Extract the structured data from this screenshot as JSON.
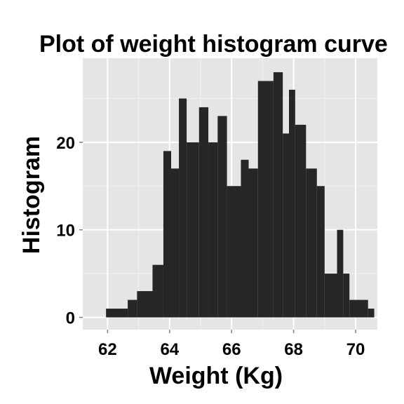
{
  "chart_data": {
    "type": "histogram",
    "title": "Plot of weight histogram curve",
    "xlabel": "Weight (Kg)",
    "ylabel": "Histogram",
    "xlim": [
      61.2,
      70.7
    ],
    "ylim": [
      -1.4,
      29.6
    ],
    "x_ticks": [
      62,
      64,
      66,
      68,
      70
    ],
    "x_tick_labels": [
      "62",
      "64",
      "66",
      "68",
      "70"
    ],
    "y_ticks": [
      0,
      10,
      20
    ],
    "y_tick_labels": [
      "0",
      "10",
      "20"
    ],
    "x_minor_gridlines": [
      63,
      65,
      67,
      69
    ],
    "y_minor_gridlines": [
      5,
      15,
      25
    ],
    "grid": true,
    "bins": [
      {
        "x0": 61.95,
        "x1": 62.65,
        "count": 1
      },
      {
        "x0": 62.65,
        "x1": 62.95,
        "count": 2
      },
      {
        "x0": 62.95,
        "x1": 63.45,
        "count": 3
      },
      {
        "x0": 63.45,
        "x1": 63.8,
        "count": 6
      },
      {
        "x0": 63.8,
        "x1": 64.05,
        "count": 19
      },
      {
        "x0": 64.05,
        "x1": 64.3,
        "count": 17
      },
      {
        "x0": 64.3,
        "x1": 64.55,
        "count": 25
      },
      {
        "x0": 64.55,
        "x1": 64.95,
        "count": 20
      },
      {
        "x0": 64.95,
        "x1": 65.25,
        "count": 24
      },
      {
        "x0": 65.25,
        "x1": 65.55,
        "count": 20
      },
      {
        "x0": 65.55,
        "x1": 65.85,
        "count": 23
      },
      {
        "x0": 65.85,
        "x1": 66.3,
        "count": 15
      },
      {
        "x0": 66.3,
        "x1": 66.55,
        "count": 18
      },
      {
        "x0": 66.55,
        "x1": 66.85,
        "count": 17
      },
      {
        "x0": 66.85,
        "x1": 67.35,
        "count": 27
      },
      {
        "x0": 67.35,
        "x1": 67.65,
        "count": 28
      },
      {
        "x0": 67.65,
        "x1": 67.85,
        "count": 21
      },
      {
        "x0": 67.85,
        "x1": 68.05,
        "count": 26
      },
      {
        "x0": 68.05,
        "x1": 68.4,
        "count": 22
      },
      {
        "x0": 68.4,
        "x1": 68.75,
        "count": 17
      },
      {
        "x0": 68.75,
        "x1": 69.0,
        "count": 15
      },
      {
        "x0": 69.0,
        "x1": 69.4,
        "count": 5
      },
      {
        "x0": 69.4,
        "x1": 69.6,
        "count": 10
      },
      {
        "x0": 69.6,
        "x1": 69.8,
        "count": 5
      },
      {
        "x0": 69.8,
        "x1": 70.4,
        "count": 2
      },
      {
        "x0": 70.4,
        "x1": 70.6,
        "count": 1
      }
    ],
    "colors": {
      "panel_background": "#e5e5e5",
      "grid_major": "#ffffff",
      "grid_minor": "#f2f2f2",
      "bar_fill": "#262626",
      "tick_mark": "#7f7f7f"
    }
  }
}
